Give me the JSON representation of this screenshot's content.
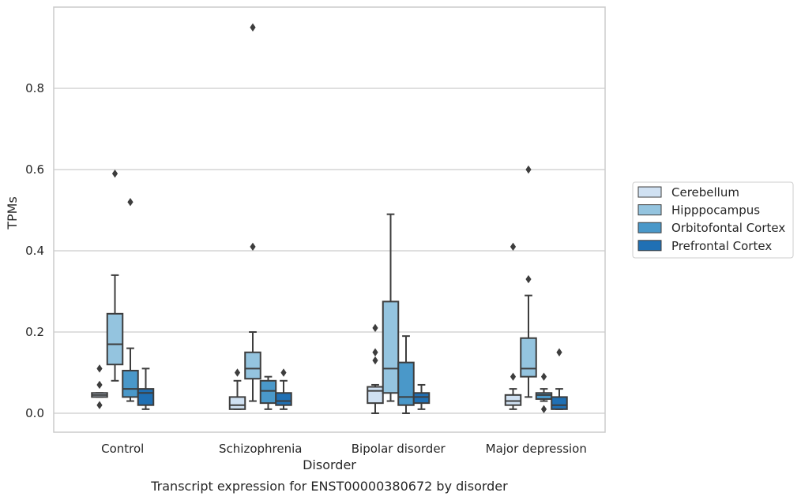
{
  "caption": "Transcript expression for ENST00000380672 by disorder",
  "chart_data": {
    "type": "box",
    "title": "",
    "xlabel": "Disorder",
    "ylabel": "TPMs",
    "ylim": [
      -0.045,
      0.985
    ],
    "yticks": [
      0.0,
      0.2,
      0.4,
      0.6,
      0.8
    ],
    "ytick_labels": [
      "0.0",
      "0.2",
      "0.4",
      "0.6",
      "0.8"
    ],
    "grid": "horizontal",
    "legend_position": "right",
    "categories": [
      "Control",
      "Schizophrenia",
      "Bipolar disorder",
      "Major depression"
    ],
    "series": [
      {
        "name": "Cerebellum",
        "color": "#d0e1f2",
        "boxes": [
          {
            "whislo": 0.04,
            "q1": 0.04,
            "med": 0.045,
            "q3": 0.05,
            "whishi": 0.05,
            "fliers": [
              0.11,
              0.07,
              0.02
            ]
          },
          {
            "whislo": 0.01,
            "q1": 0.01,
            "med": 0.02,
            "q3": 0.04,
            "whishi": 0.08,
            "fliers": [
              0.1
            ]
          },
          {
            "whislo": 0.0,
            "q1": 0.025,
            "med": 0.055,
            "q3": 0.065,
            "whishi": 0.07,
            "fliers": [
              0.21,
              0.15,
              0.13
            ]
          },
          {
            "whislo": 0.01,
            "q1": 0.02,
            "med": 0.03,
            "q3": 0.045,
            "whishi": 0.06,
            "fliers": [
              0.41,
              0.09
            ]
          }
        ]
      },
      {
        "name": "Hipppocampus",
        "color": "#94c4df",
        "boxes": [
          {
            "whislo": 0.08,
            "q1": 0.12,
            "med": 0.17,
            "q3": 0.245,
            "whishi": 0.34,
            "fliers": [
              0.59
            ]
          },
          {
            "whislo": 0.03,
            "q1": 0.085,
            "med": 0.11,
            "q3": 0.15,
            "whishi": 0.2,
            "fliers": [
              0.41,
              0.95
            ]
          },
          {
            "whislo": 0.03,
            "q1": 0.05,
            "med": 0.11,
            "q3": 0.275,
            "whishi": 0.49,
            "fliers": []
          },
          {
            "whislo": 0.04,
            "q1": 0.09,
            "med": 0.11,
            "q3": 0.185,
            "whishi": 0.29,
            "fliers": [
              0.33,
              0.6
            ]
          }
        ]
      },
      {
        "name": "Orbitofontal Cortex",
        "color": "#4a98c9",
        "boxes": [
          {
            "whislo": 0.03,
            "q1": 0.04,
            "med": 0.06,
            "q3": 0.105,
            "whishi": 0.16,
            "fliers": [
              0.52
            ]
          },
          {
            "whislo": 0.01,
            "q1": 0.025,
            "med": 0.055,
            "q3": 0.08,
            "whishi": 0.09,
            "fliers": []
          },
          {
            "whislo": 0.0,
            "q1": 0.02,
            "med": 0.04,
            "q3": 0.125,
            "whishi": 0.19,
            "fliers": []
          },
          {
            "whislo": 0.03,
            "q1": 0.035,
            "med": 0.045,
            "q3": 0.05,
            "whishi": 0.06,
            "fliers": [
              0.09,
              0.01
            ]
          }
        ]
      },
      {
        "name": "Prefrontal Cortex",
        "color": "#2070b4",
        "boxes": [
          {
            "whislo": 0.01,
            "q1": 0.02,
            "med": 0.05,
            "q3": 0.06,
            "whishi": 0.11,
            "fliers": []
          },
          {
            "whislo": 0.01,
            "q1": 0.02,
            "med": 0.03,
            "q3": 0.05,
            "whishi": 0.08,
            "fliers": [
              0.1
            ]
          },
          {
            "whislo": 0.01,
            "q1": 0.025,
            "med": 0.04,
            "q3": 0.05,
            "whishi": 0.07,
            "fliers": []
          },
          {
            "whislo": 0.01,
            "q1": 0.01,
            "med": 0.02,
            "q3": 0.04,
            "whishi": 0.06,
            "fliers": [
              0.15
            ]
          }
        ]
      }
    ]
  }
}
